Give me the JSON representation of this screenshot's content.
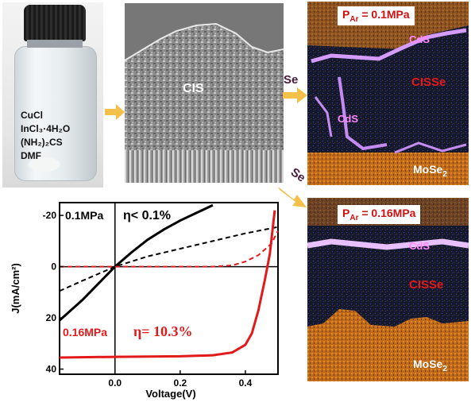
{
  "solution": {
    "lines": [
      "CuCl",
      "InCl₃·4H₂O",
      "(NH₂)₂CS",
      "DMF"
    ]
  },
  "sem": {
    "label": "CIS"
  },
  "arrows": {
    "se_top": "Se",
    "se_bottom": "Se"
  },
  "eds_top": {
    "pressure_label": "P",
    "pressure_sub": "Ar",
    "pressure_value": " = 0.1MPa",
    "cds_label_1": "CdS",
    "cds_label_2": "CdS",
    "cisse_label": "CISSe",
    "mose_label": "MoSe",
    "mose_sub": "2"
  },
  "eds_bottom": {
    "pressure_label": "P",
    "pressure_sub": "Ar",
    "pressure_value": " = 0.16MPa",
    "cds_label": "CdS",
    "cisse_label": "CISSe",
    "mose_label": "MoSe",
    "mose_sub": "2"
  },
  "colors": {
    "red": "#e21a1a",
    "black": "#000000",
    "orange": "#e07f1c",
    "magenta": "#e080ff"
  },
  "chart_data": {
    "type": "line",
    "xlabel": "Voltage(V)",
    "ylabel": "J(mA/cm²)",
    "xlim": [
      -0.17,
      0.5
    ],
    "ylim": [
      -25,
      42
    ],
    "y_inverted": true,
    "x_ticks": [
      "0.0",
      "0.2",
      "0.4"
    ],
    "x_tick_values": [
      0.0,
      0.2,
      0.4
    ],
    "y_ticks": [
      "-20",
      "0",
      "20",
      "40"
    ],
    "y_tick_values": [
      -20,
      0,
      20,
      40
    ],
    "annotations": [
      {
        "text": "0.1MPa",
        "color": "#000000"
      },
      {
        "text": "η< 0.1%",
        "color": "#000000"
      },
      {
        "text": "0.16MPa",
        "color": "#e21a1a"
      },
      {
        "text": "η= 10.3%",
        "color": "#e21a1a"
      }
    ],
    "series": [
      {
        "color": "#000000",
        "dash": false,
        "x": [
          -0.17,
          -0.1,
          -0.05,
          0.0,
          0.05,
          0.1,
          0.15,
          0.2,
          0.25,
          0.3
        ],
        "y": [
          21,
          13,
          6.5,
          0,
          -5.5,
          -10.5,
          -14.5,
          -18,
          -21,
          -24
        ]
      },
      {
        "color": "#000000",
        "dash": true,
        "x": [
          -0.17,
          -0.1,
          0.0,
          0.1,
          0.2,
          0.3,
          0.4,
          0.5
        ],
        "y": [
          9.5,
          5.5,
          0,
          -4,
          -7,
          -10,
          -13,
          -15.5
        ]
      },
      {
        "color": "#e21a1a",
        "dash": false,
        "x": [
          -0.17,
          0.0,
          0.2,
          0.3,
          0.36,
          0.4,
          0.42,
          0.44,
          0.46,
          0.475,
          0.49
        ],
        "y": [
          35.5,
          35.2,
          35.0,
          34.6,
          33.5,
          30.5,
          26,
          17,
          5,
          -5,
          -22
        ]
      },
      {
        "color": "#e21a1a",
        "dash": true,
        "x": [
          -0.17,
          0.0,
          0.2,
          0.3,
          0.36,
          0.4,
          0.44,
          0.48,
          0.5
        ],
        "y": [
          0,
          0,
          0,
          0,
          -0.5,
          -2,
          -4.5,
          -9,
          -14
        ]
      }
    ]
  }
}
